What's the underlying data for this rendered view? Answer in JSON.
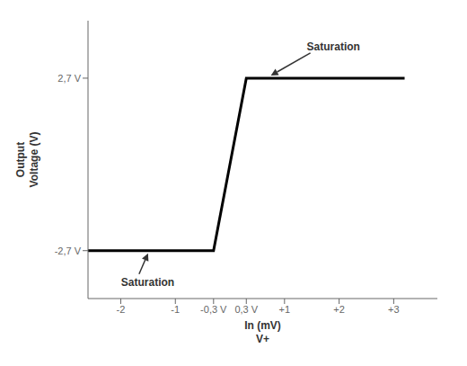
{
  "chart_data": {
    "type": "line",
    "x": [
      -2.6,
      -0.3,
      0.3,
      3.2
    ],
    "values": [
      -2.7,
      -2.7,
      2.7,
      2.7
    ],
    "color": "#000000",
    "xlabel": "In (mV)\nV+",
    "ylabel": "Output\nVoltage (V)",
    "xlim": [
      -2.6,
      3.8
    ],
    "ylim": [
      -4.2,
      4.5
    ],
    "xticks": [
      -2,
      -1,
      {
        "value": -0.3,
        "label": "-0,3 V"
      },
      {
        "value": 0.3,
        "label": "0,3 V"
      },
      {
        "value": 1,
        "label": "+1"
      },
      {
        "value": 2,
        "label": "+2"
      },
      {
        "value": 3,
        "label": "+3"
      }
    ],
    "yticks": [
      {
        "value": -2.7,
        "label": "-2,7 V"
      },
      {
        "value": 2.7,
        "label": "2,7 V"
      }
    ],
    "annotations": [
      {
        "text": "Saturation",
        "x": 0.75,
        "y": 2.7
      },
      {
        "text": "Saturation",
        "x": -1.5,
        "y": -2.7
      }
    ]
  }
}
